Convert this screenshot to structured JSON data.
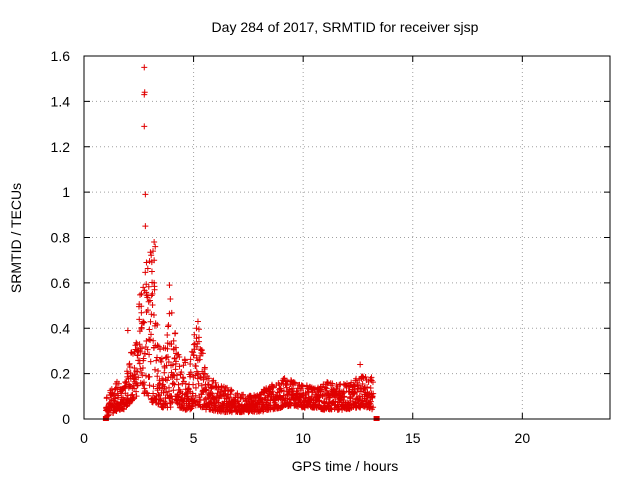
{
  "chart_data": {
    "type": "scatter",
    "title": "Day 284 of 2017, SRMTID for receiver sjsp",
    "xlabel": "GPS time / hours",
    "ylabel": "SRMTID / TECUs",
    "xlim": [
      0,
      24
    ],
    "ylim": [
      0,
      1.6
    ],
    "x_ticks": [
      0,
      5,
      10,
      15,
      20
    ],
    "x_tick_labels": [
      "0",
      "5",
      "10",
      "15",
      "20"
    ],
    "y_ticks": [
      0,
      0.2,
      0.4,
      0.6,
      0.8,
      1.0,
      1.2,
      1.4,
      1.6
    ],
    "y_tick_labels": [
      "0",
      "0.2",
      "0.4",
      "0.6",
      "0.8",
      "1",
      "1.2",
      "1.4",
      "1.6"
    ],
    "grid": true,
    "marker": "+",
    "marker_color": "#e00000",
    "envelope": {
      "x": [
        1.0,
        1.2,
        1.4,
        1.6,
        1.8,
        2.0,
        2.2,
        2.4,
        2.6,
        2.8,
        3.0,
        3.2,
        3.4,
        3.6,
        3.8,
        4.0,
        4.2,
        4.4,
        4.6,
        4.8,
        5.0,
        5.2,
        5.4,
        5.6,
        5.8,
        6.0,
        6.5,
        7.0,
        7.5,
        8.0,
        8.5,
        9.0,
        9.5,
        10.0,
        10.5,
        11.0,
        11.5,
        12.0,
        12.5,
        13.0,
        13.2
      ],
      "ymax": [
        0.09,
        0.13,
        0.18,
        0.16,
        0.15,
        0.23,
        0.35,
        0.42,
        0.6,
        0.68,
        0.78,
        0.62,
        0.38,
        0.3,
        0.42,
        0.58,
        0.35,
        0.25,
        0.28,
        0.22,
        0.36,
        0.43,
        0.32,
        0.2,
        0.18,
        0.17,
        0.14,
        0.12,
        0.1,
        0.12,
        0.15,
        0.19,
        0.17,
        0.16,
        0.14,
        0.17,
        0.15,
        0.16,
        0.19,
        0.2,
        0.18
      ],
      "ymin": [
        0.01,
        0.02,
        0.03,
        0.04,
        0.04,
        0.06,
        0.08,
        0.1,
        0.12,
        0.1,
        0.08,
        0.07,
        0.06,
        0.05,
        0.05,
        0.05,
        0.05,
        0.05,
        0.04,
        0.04,
        0.05,
        0.06,
        0.05,
        0.04,
        0.04,
        0.03,
        0.03,
        0.03,
        0.03,
        0.03,
        0.04,
        0.05,
        0.06,
        0.05,
        0.05,
        0.04,
        0.04,
        0.04,
        0.05,
        0.05,
        0.04
      ]
    },
    "outliers": [
      {
        "x": 2.75,
        "y": 1.55
      },
      {
        "x": 2.75,
        "y": 1.43
      },
      {
        "x": 2.77,
        "y": 1.44
      },
      {
        "x": 2.75,
        "y": 1.29
      },
      {
        "x": 2.8,
        "y": 0.99
      },
      {
        "x": 2.8,
        "y": 0.85
      },
      {
        "x": 3.2,
        "y": 0.78
      },
      {
        "x": 3.15,
        "y": 0.74
      },
      {
        "x": 3.25,
        "y": 0.76
      },
      {
        "x": 3.2,
        "y": 0.7
      },
      {
        "x": 2.85,
        "y": 0.69
      },
      {
        "x": 3.1,
        "y": 0.65
      },
      {
        "x": 3.2,
        "y": 0.6
      },
      {
        "x": 3.9,
        "y": 0.59
      },
      {
        "x": 2.7,
        "y": 0.58
      },
      {
        "x": 5.2,
        "y": 0.43
      },
      {
        "x": 2.0,
        "y": 0.39
      },
      {
        "x": 12.6,
        "y": 0.24
      }
    ],
    "end_markers": [
      {
        "x": 1.0,
        "y": 0.0
      },
      {
        "x": 13.35,
        "y": 0.0
      }
    ]
  }
}
